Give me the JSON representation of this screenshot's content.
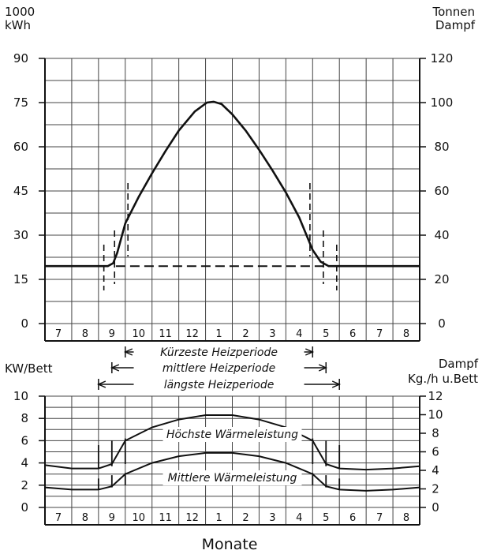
{
  "chart_data": [
    {
      "type": "line",
      "title": "",
      "units": {
        "left": [
          "1000",
          "kWh"
        ],
        "right": [
          "Tonnen",
          "Dampf"
        ]
      },
      "month_labels": [
        "7",
        "8",
        "9",
        "10",
        "11",
        "12",
        "1",
        "2",
        "3",
        "4",
        "5",
        "6",
        "7",
        "8"
      ],
      "y_left": {
        "ticks": [
          "0",
          "15",
          "30",
          "45",
          "60",
          "75",
          "90"
        ],
        "ylim": [
          0,
          90
        ]
      },
      "y_right": {
        "ticks": [
          "0",
          "20",
          "40",
          "60",
          "80",
          "100",
          "120"
        ],
        "ylim": [
          0,
          120
        ]
      },
      "grid": true,
      "series": [
        {
          "style": "solid",
          "x": [
            0.0,
            2.35,
            2.55,
            2.7,
            3.0,
            3.5,
            4.0,
            4.5,
            5.0,
            5.6,
            6.05,
            6.3,
            6.6,
            7.0,
            7.5,
            8.0,
            8.5,
            9.0,
            9.5,
            10.0,
            10.3,
            10.6,
            11.0,
            11.5,
            12.0,
            13.0,
            14.0
          ],
          "y": [
            19.5,
            19.5,
            20.5,
            24,
            34,
            43,
            51,
            58.5,
            65.5,
            72,
            75,
            75.3,
            74.5,
            71,
            65.5,
            59,
            52,
            44.5,
            36,
            25,
            21,
            19.5,
            19.5,
            19.5,
            19.5,
            19.5,
            19.5
          ]
        },
        {
          "style": "dashed",
          "x": [
            2.65,
            10.75
          ],
          "y": [
            19.5,
            19.5
          ]
        }
      ]
    },
    {
      "type": "line",
      "title": "",
      "units": {
        "left": [
          "KW/Bett"
        ],
        "right": [
          "Dampf",
          "Kg./h u.Bett"
        ]
      },
      "month_labels": [
        "7",
        "8",
        "9",
        "10",
        "11",
        "12",
        "1",
        "2",
        "3",
        "4",
        "5",
        "6",
        "7",
        "8"
      ],
      "y_left": {
        "ticks": [
          "0",
          "2",
          "4",
          "6",
          "8",
          "10"
        ],
        "ylim": [
          0,
          10
        ]
      },
      "y_right": {
        "ticks": [
          "0",
          "2",
          "4",
          "6",
          "8",
          "10",
          "12"
        ],
        "ylim": [
          0,
          12
        ]
      },
      "grid": true,
      "series": [
        {
          "name": "Höchste Wärmeleistung",
          "x": [
            0.0,
            1.0,
            2.0,
            2.5,
            3.0,
            4.0,
            5.0,
            6.0,
            7.0,
            8.0,
            9.0,
            10.0,
            10.5,
            11.0,
            12.0,
            13.0,
            14.0
          ],
          "y": [
            3.8,
            3.5,
            3.5,
            3.9,
            6.0,
            7.2,
            7.9,
            8.3,
            8.3,
            7.9,
            7.2,
            6.0,
            3.9,
            3.5,
            3.4,
            3.5,
            3.7
          ]
        },
        {
          "name": "Mittlere Wärmeleistung",
          "x": [
            0.0,
            1.0,
            2.0,
            2.5,
            3.0,
            4.0,
            5.0,
            6.0,
            7.0,
            8.0,
            9.0,
            10.0,
            10.5,
            11.0,
            12.0,
            13.0,
            14.0
          ],
          "y": [
            1.8,
            1.6,
            1.6,
            1.9,
            3.0,
            4.0,
            4.6,
            4.9,
            4.9,
            4.6,
            4.0,
            3.0,
            1.9,
            1.6,
            1.5,
            1.6,
            1.8
          ]
        }
      ],
      "annotations": [
        "Höchste Wärmeleistung",
        "Mittlere Wärmeleistung"
      ]
    }
  ],
  "heating_periods": [
    {
      "label": "Kürzeste Heizperiode",
      "from": 3.0,
      "to": 10.0
    },
    {
      "label": "mittlere Heizperiode",
      "from": 2.5,
      "to": 10.5
    },
    {
      "label": "längste Heizperiode",
      "from": 2.0,
      "to": 11.0
    }
  ],
  "x_axis_label": "Monate"
}
